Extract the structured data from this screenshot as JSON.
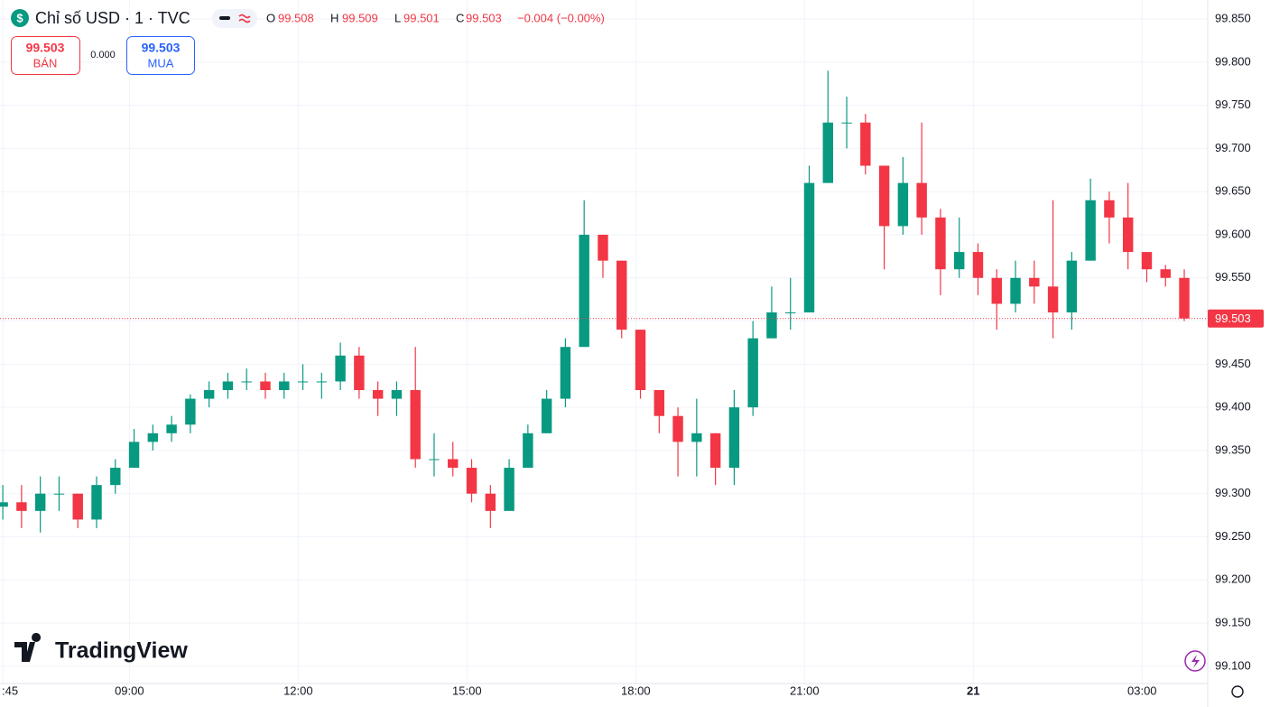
{
  "header": {
    "symbol_icon": "$",
    "title": "Chỉ số USD · 1 · TVC",
    "open_label": "O",
    "open": 99.508,
    "high_label": "H",
    "high": 99.509,
    "low_label": "L",
    "low": 99.501,
    "close_label": "C",
    "close": 99.503,
    "change": "−0.004 (−0.00%)"
  },
  "trade_panel": {
    "sell_price": 99.503,
    "sell_label": "BÁN",
    "spread": "0.000",
    "buy_price": 99.503,
    "buy_label": "MUA"
  },
  "branding": "TradingView",
  "chart_data": {
    "type": "candlestick",
    "up_color": "#089981",
    "down_color": "#f23645",
    "x": [
      405,
      425,
      445,
      465,
      485,
      505,
      525,
      545,
      565,
      585,
      605,
      625,
      645,
      665,
      685,
      705,
      725,
      745,
      765,
      785,
      805,
      825,
      845,
      865,
      885,
      905,
      925,
      945,
      965,
      985,
      1005,
      1025,
      1045,
      1065,
      1085,
      1105,
      1125,
      1145,
      1165,
      1185,
      1205,
      1225,
      1245,
      1265,
      1285,
      1305,
      1325,
      1345,
      1365,
      1385,
      1405,
      1425,
      1445,
      1465,
      1485,
      1505,
      1525,
      1545,
      1565,
      1585,
      1605,
      1625,
      1645,
      1665
    ],
    "open": [
      99.285,
      99.29,
      99.28,
      99.3,
      99.3,
      99.27,
      99.31,
      99.33,
      99.36,
      99.37,
      99.38,
      99.41,
      99.42,
      99.43,
      99.43,
      99.42,
      99.43,
      99.43,
      99.43,
      99.46,
      99.42,
      99.41,
      99.42,
      99.34,
      99.34,
      99.33,
      99.3,
      99.28,
      99.33,
      99.37,
      99.41,
      99.47,
      99.6,
      99.57,
      99.49,
      99.42,
      99.39,
      99.36,
      99.37,
      99.33,
      99.4,
      99.48,
      99.51,
      99.51,
      99.66,
      99.73,
      99.73,
      99.68,
      99.61,
      99.66,
      99.62,
      99.56,
      99.58,
      99.55,
      99.52,
      99.55,
      99.54,
      99.51,
      99.57,
      99.64,
      99.62,
      99.58,
      99.56,
      99.55
    ],
    "high": [
      99.31,
      99.31,
      99.32,
      99.32,
      99.3,
      99.32,
      99.34,
      99.375,
      99.38,
      99.39,
      99.415,
      99.43,
      99.44,
      99.445,
      99.44,
      99.44,
      99.45,
      99.44,
      99.475,
      99.47,
      99.43,
      99.43,
      99.47,
      99.37,
      99.36,
      99.34,
      99.31,
      99.34,
      99.38,
      99.42,
      99.48,
      99.64,
      99.6,
      99.57,
      99.49,
      99.42,
      99.4,
      99.41,
      99.37,
      99.42,
      99.5,
      99.54,
      99.55,
      99.68,
      99.79,
      99.76,
      99.74,
      99.68,
      99.69,
      99.73,
      99.63,
      99.62,
      99.59,
      99.56,
      99.57,
      99.57,
      99.64,
      99.58,
      99.665,
      99.65,
      99.66,
      99.58,
      99.565,
      99.56
    ],
    "low": [
      99.27,
      99.26,
      99.255,
      99.28,
      99.26,
      99.26,
      99.3,
      99.33,
      99.35,
      99.36,
      99.37,
      99.4,
      99.41,
      99.42,
      99.41,
      99.41,
      99.42,
      99.41,
      99.42,
      99.41,
      99.39,
      99.39,
      99.33,
      99.32,
      99.32,
      99.29,
      99.26,
      99.28,
      99.33,
      99.37,
      99.4,
      99.47,
      99.55,
      99.48,
      99.41,
      99.37,
      99.32,
      99.32,
      99.31,
      99.31,
      99.39,
      99.48,
      99.49,
      99.51,
      99.66,
      99.7,
      99.67,
      99.56,
      99.6,
      99.6,
      99.53,
      99.55,
      99.53,
      99.49,
      99.51,
      99.52,
      99.48,
      99.49,
      99.57,
      99.59,
      99.56,
      99.545,
      99.54,
      99.5
    ],
    "close": [
      99.29,
      99.28,
      99.3,
      99.3,
      99.27,
      99.31,
      99.33,
      99.36,
      99.37,
      99.38,
      99.41,
      99.42,
      99.43,
      99.43,
      99.42,
      99.43,
      99.43,
      99.43,
      99.46,
      99.42,
      99.41,
      99.42,
      99.34,
      99.34,
      99.33,
      99.3,
      99.28,
      99.33,
      99.37,
      99.41,
      99.47,
      99.6,
      99.57,
      99.49,
      99.42,
      99.39,
      99.36,
      99.37,
      99.33,
      99.4,
      99.48,
      99.51,
      99.51,
      99.66,
      99.73,
      99.73,
      99.68,
      99.61,
      99.66,
      99.62,
      99.56,
      99.58,
      99.55,
      99.52,
      99.55,
      99.54,
      99.51,
      99.57,
      99.64,
      99.62,
      99.58,
      99.56,
      99.55,
      99.503
    ],
    "last_price": 99.503,
    "xlim": [
      402,
      1690
    ],
    "ylim": [
      99.08,
      99.872
    ],
    "xticks": [
      {
        "value": 405,
        "label": ":45"
      },
      {
        "value": 540,
        "label": "09:00"
      },
      {
        "value": 720,
        "label": "12:00"
      },
      {
        "value": 900,
        "label": "15:00"
      },
      {
        "value": 1080,
        "label": "18:00"
      },
      {
        "value": 1260,
        "label": "21:00"
      },
      {
        "value": 1440,
        "label": "21"
      },
      {
        "value": 1620,
        "label": "03:00"
      }
    ],
    "yticks": [
      {
        "value": 99.1,
        "label": "99.100"
      },
      {
        "value": 99.15,
        "label": "99.150"
      },
      {
        "value": 99.2,
        "label": "99.200"
      },
      {
        "value": 99.25,
        "label": "99.250"
      },
      {
        "value": 99.3,
        "label": "99.300"
      },
      {
        "value": 99.35,
        "label": "99.350"
      },
      {
        "value": 99.4,
        "label": "99.400"
      },
      {
        "value": 99.45,
        "label": "99.450"
      },
      {
        "value": 99.5,
        "label": "99.500"
      },
      {
        "value": 99.55,
        "label": "99.550"
      },
      {
        "value": 99.6,
        "label": "99.600"
      },
      {
        "value": 99.65,
        "label": "99.650"
      },
      {
        "value": 99.7,
        "label": "99.700"
      },
      {
        "value": 99.75,
        "label": "99.750"
      },
      {
        "value": 99.8,
        "label": "99.800"
      },
      {
        "value": 99.85,
        "label": "99.850"
      }
    ],
    "grid": true
  }
}
